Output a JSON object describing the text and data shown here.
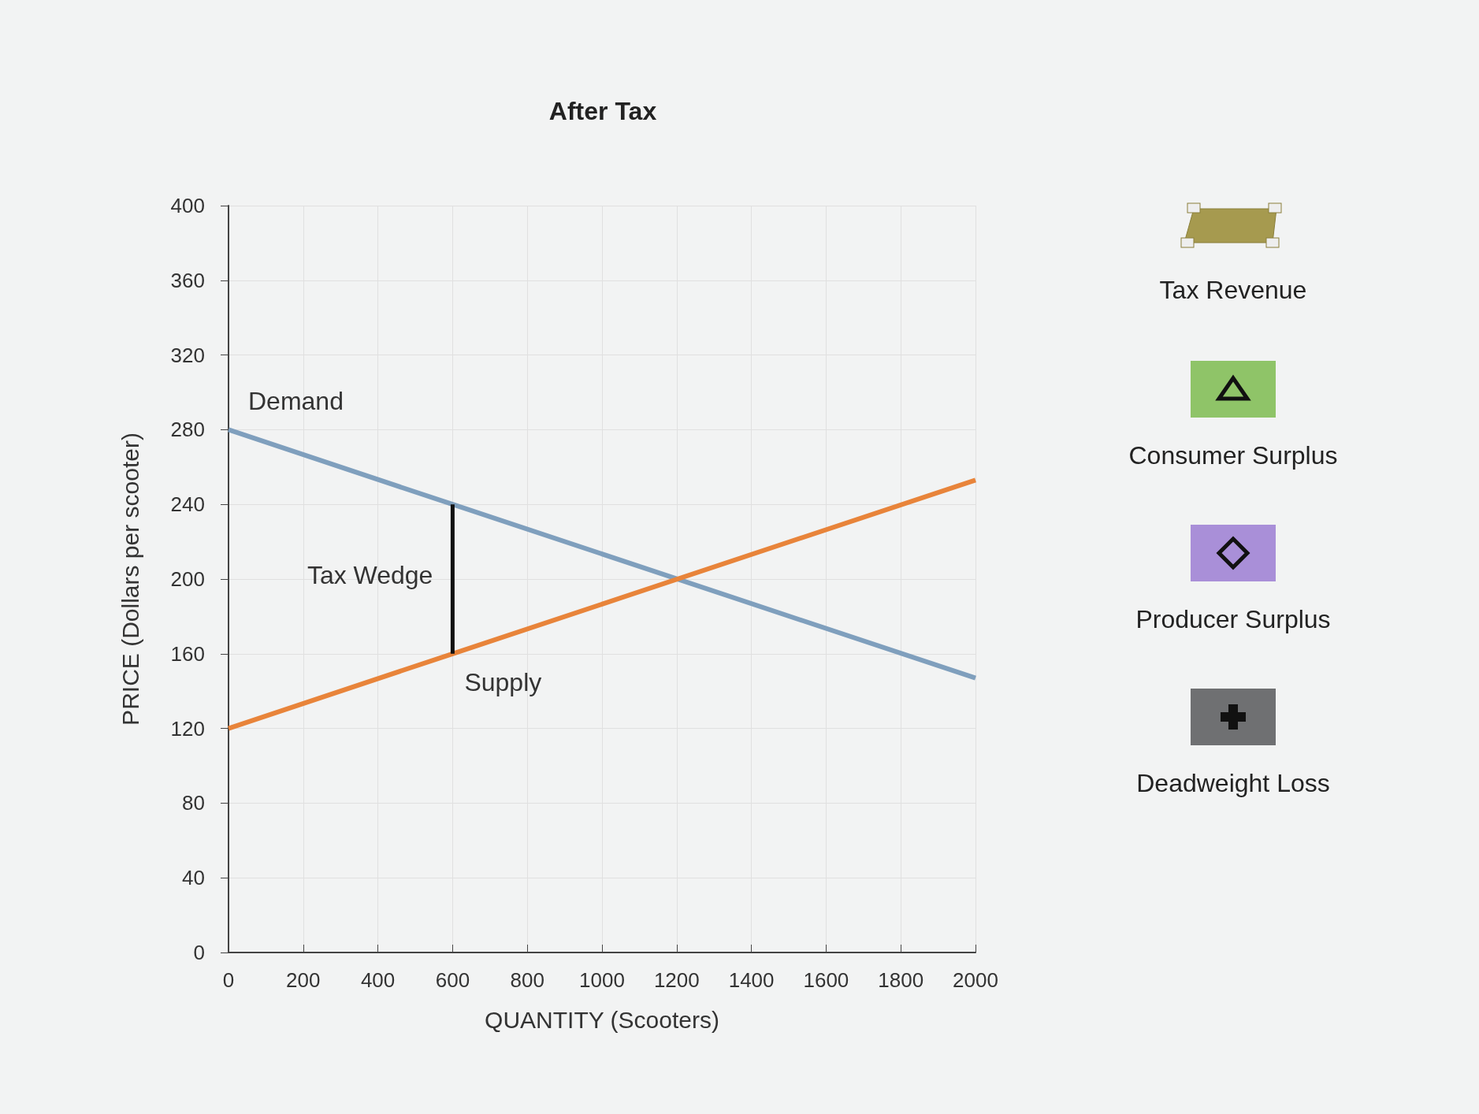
{
  "chart_data": {
    "type": "line",
    "title": "After Tax",
    "xlabel": "QUANTITY (Scooters)",
    "ylabel": "PRICE (Dollars per scooter)",
    "xlim": [
      0,
      2000
    ],
    "xticks": [
      0,
      200,
      400,
      600,
      800,
      1000,
      1200,
      1400,
      1600,
      1800,
      2000
    ],
    "ylim": [
      0,
      400
    ],
    "yticks": [
      0,
      40,
      80,
      120,
      160,
      200,
      240,
      280,
      320,
      360,
      400
    ],
    "grid": true,
    "marker": "none",
    "line_style": "solid",
    "legend": false,
    "series": [
      {
        "name": "Demand",
        "color": "#7f9fbd",
        "x": [
          0,
          600,
          2000
        ],
        "values": [
          280,
          240,
          147
        ]
      },
      {
        "name": "Supply",
        "color": "#e8843a",
        "x": [
          0,
          600,
          2000
        ],
        "values": [
          120,
          160,
          253
        ]
      },
      {
        "name": "Tax Wedge",
        "color": "#111111",
        "x": [
          600,
          600
        ],
        "values": [
          160,
          240
        ]
      }
    ],
    "annotations": [
      "Tax Revenue",
      "Consumer Surplus",
      "Producer Surplus",
      "Deadweight Loss"
    ]
  }
}
